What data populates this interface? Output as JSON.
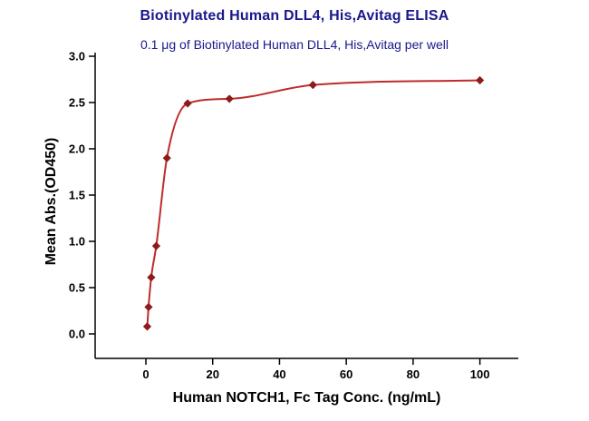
{
  "header": {
    "title": "Biotinylated Human DLL4, His,Avitag ELISA",
    "subtitle": "0.1 μg of Biotinylated Human DLL4, His,Avitag per well",
    "title_color": "#18188c"
  },
  "chart_data": {
    "type": "scatter",
    "title": "Biotinylated Human DLL4, His,Avitag ELISA",
    "subtitle": "0.1 μg of Biotinylated Human DLL4, His,Avitag per well",
    "xlabel": "Human NOTCH1, Fc Tag Conc. (ng/mL)",
    "ylabel": "Mean Abs.(OD450)",
    "x": [
      0.4,
      0.8,
      1.6,
      3.1,
      6.3,
      12.5,
      25,
      50,
      100
    ],
    "y": [
      0.08,
      0.29,
      0.61,
      0.95,
      1.9,
      2.49,
      2.54,
      2.69,
      2.74
    ],
    "xlim": [
      0,
      100
    ],
    "ylim": [
      0.0,
      3.0
    ],
    "x_ticks": [
      0,
      20,
      40,
      60,
      80,
      100
    ],
    "x_tick_labels": [
      "0",
      "20",
      "40",
      "60",
      "80",
      "100"
    ],
    "y_ticks": [
      0,
      0.5,
      1,
      1.5,
      2,
      2.5,
      3
    ],
    "y_tick_labels": [
      "0.0",
      "0.5",
      "1.0",
      "1.5",
      "2.0",
      "2.5",
      "3.0"
    ],
    "curve": "smooth-saturation",
    "marker": "diamond",
    "line_color": "#bf2b2b",
    "marker_color": "#8e1a1a",
    "axis_color": "#000000",
    "grid": false,
    "legend": "none"
  }
}
